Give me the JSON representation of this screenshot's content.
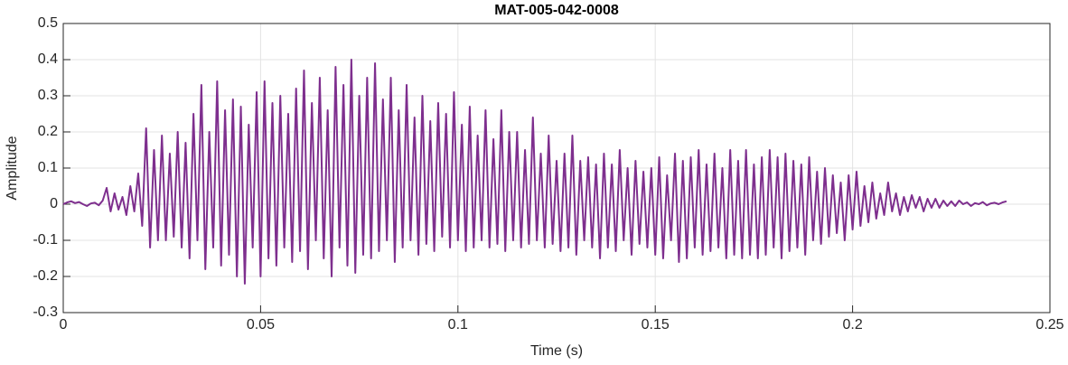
{
  "chart_data": {
    "type": "line",
    "title": "MAT-005-042-0008",
    "xlabel": "Time (s)",
    "ylabel": "Amplitude",
    "color": "#7e2f8e",
    "grid": true,
    "xlim": [
      0,
      0.25
    ],
    "xticks": [
      0,
      0.05,
      0.1,
      0.15,
      0.2,
      0.25
    ],
    "ylim": [
      -0.3,
      0.5
    ],
    "yticks": [
      -0.3,
      -0.2,
      -0.1,
      0,
      0.1,
      0.2,
      0.3,
      0.4,
      0.5
    ],
    "x": [
      0,
      0.001,
      0.002,
      0.003,
      0.004,
      0.005,
      0.006,
      0.007,
      0.008,
      0.009,
      0.01,
      0.011,
      0.012,
      0.013,
      0.014,
      0.015,
      0.016,
      0.017,
      0.018,
      0.019,
      0.02,
      0.021,
      0.022,
      0.023,
      0.024,
      0.025,
      0.026,
      0.027,
      0.028,
      0.029,
      0.03,
      0.031,
      0.032,
      0.033,
      0.034,
      0.035,
      0.036,
      0.037,
      0.038,
      0.039,
      0.04,
      0.041,
      0.042,
      0.043,
      0.044,
      0.045,
      0.046,
      0.047,
      0.048,
      0.049,
      0.05,
      0.051,
      0.052,
      0.053,
      0.054,
      0.055,
      0.056,
      0.057,
      0.058,
      0.059,
      0.06,
      0.061,
      0.062,
      0.063,
      0.064,
      0.065,
      0.066,
      0.067,
      0.068,
      0.069,
      0.07,
      0.071,
      0.072,
      0.073,
      0.074,
      0.075,
      0.076,
      0.077,
      0.078,
      0.079,
      0.08,
      0.081,
      0.082,
      0.083,
      0.084,
      0.085,
      0.086,
      0.087,
      0.088,
      0.089,
      0.09,
      0.091,
      0.092,
      0.093,
      0.094,
      0.095,
      0.096,
      0.097,
      0.098,
      0.099,
      0.1,
      0.101,
      0.102,
      0.103,
      0.104,
      0.105,
      0.106,
      0.107,
      0.108,
      0.109,
      0.11,
      0.111,
      0.112,
      0.113,
      0.114,
      0.115,
      0.116,
      0.117,
      0.118,
      0.119,
      0.12,
      0.121,
      0.122,
      0.123,
      0.124,
      0.125,
      0.126,
      0.127,
      0.128,
      0.129,
      0.13,
      0.131,
      0.132,
      0.133,
      0.134,
      0.135,
      0.136,
      0.137,
      0.138,
      0.139,
      0.14,
      0.141,
      0.142,
      0.143,
      0.144,
      0.145,
      0.146,
      0.147,
      0.148,
      0.149,
      0.15,
      0.151,
      0.152,
      0.153,
      0.154,
      0.155,
      0.156,
      0.157,
      0.158,
      0.159,
      0.16,
      0.161,
      0.162,
      0.163,
      0.164,
      0.165,
      0.166,
      0.167,
      0.168,
      0.169,
      0.17,
      0.171,
      0.172,
      0.173,
      0.174,
      0.175,
      0.176,
      0.177,
      0.178,
      0.179,
      0.18,
      0.181,
      0.182,
      0.183,
      0.184,
      0.185,
      0.186,
      0.187,
      0.188,
      0.189,
      0.19,
      0.191,
      0.192,
      0.193,
      0.194,
      0.195,
      0.196,
      0.197,
      0.198,
      0.199,
      0.2,
      0.201,
      0.202,
      0.203,
      0.204,
      0.205,
      0.206,
      0.207,
      0.208,
      0.209,
      0.21,
      0.211,
      0.212,
      0.213,
      0.214,
      0.215,
      0.216,
      0.217,
      0.218,
      0.219,
      0.22,
      0.221,
      0.222,
      0.223,
      0.224,
      0.225,
      0.226,
      0.227,
      0.228,
      0.229,
      0.23,
      0.231,
      0.232,
      0.233,
      0.234,
      0.235,
      0.236,
      0.237,
      0.238,
      0.239
    ],
    "values": [
      0,
      0.005,
      0.008,
      0.003,
      0.006,
      0,
      -0.005,
      0.002,
      0.004,
      -0.003,
      0.01,
      0.045,
      -0.02,
      0.03,
      -0.015,
      0.02,
      -0.03,
      0.05,
      -0.02,
      0.085,
      -0.06,
      0.21,
      -0.12,
      0.15,
      -0.1,
      0.19,
      -0.1,
      0.14,
      -0.09,
      0.2,
      -0.12,
      0.17,
      -0.15,
      0.25,
      -0.1,
      0.33,
      -0.18,
      0.2,
      -0.12,
      0.34,
      -0.17,
      0.26,
      -0.14,
      0.29,
      -0.2,
      0.27,
      -0.22,
      0.22,
      -0.12,
      0.31,
      -0.2,
      0.34,
      -0.15,
      0.28,
      -0.17,
      0.3,
      -0.12,
      0.25,
      -0.16,
      0.32,
      -0.13,
      0.37,
      -0.18,
      0.28,
      -0.1,
      0.35,
      -0.15,
      0.26,
      -0.2,
      0.38,
      -0.12,
      0.33,
      -0.17,
      0.4,
      -0.19,
      0.3,
      -0.14,
      0.35,
      -0.15,
      0.39,
      -0.13,
      0.29,
      -0.1,
      0.35,
      -0.16,
      0.26,
      -0.12,
      0.33,
      -0.1,
      0.24,
      -0.14,
      0.3,
      -0.11,
      0.23,
      -0.13,
      0.28,
      -0.09,
      0.25,
      -0.12,
      0.31,
      -0.1,
      0.22,
      -0.13,
      0.27,
      -0.12,
      0.19,
      -0.1,
      0.26,
      -0.12,
      0.18,
      -0.11,
      0.26,
      -0.13,
      0.2,
      -0.1,
      0.2,
      -0.12,
      0.15,
      -0.11,
      0.24,
      -0.1,
      0.14,
      -0.12,
      0.19,
      -0.11,
      0.12,
      -0.13,
      0.14,
      -0.12,
      0.19,
      -0.14,
      0.12,
      -0.1,
      0.13,
      -0.12,
      0.11,
      -0.15,
      0.14,
      -0.12,
      0.11,
      -0.13,
      0.15,
      -0.1,
      0.1,
      -0.14,
      0.12,
      -0.11,
      0.09,
      -0.12,
      0.1,
      -0.14,
      0.13,
      -0.15,
      0.08,
      -0.1,
      0.14,
      -0.16,
      0.12,
      -0.15,
      0.13,
      -0.12,
      0.15,
      -0.14,
      0.11,
      -0.13,
      0.14,
      -0.12,
      0.1,
      -0.15,
      0.15,
      -0.14,
      0.12,
      -0.15,
      0.15,
      -0.14,
      0.11,
      -0.15,
      0.13,
      -0.14,
      0.15,
      -0.12,
      0.13,
      -0.15,
      0.14,
      -0.13,
      0.12,
      -0.12,
      0.11,
      -0.14,
      0.13,
      -0.1,
      0.09,
      -0.11,
      0.1,
      -0.09,
      0.08,
      -0.08,
      0.06,
      -0.1,
      0.08,
      -0.07,
      0.09,
      -0.06,
      0.05,
      -0.05,
      0.06,
      -0.04,
      0.03,
      -0.03,
      0.06,
      -0.02,
      0.03,
      -0.03,
      0.02,
      -0.02,
      0.025,
      -0.01,
      0.02,
      -0.02,
      0.015,
      -0.01,
      0.015,
      -0.01,
      0.01,
      -0.005,
      0.008,
      -0.005,
      0.01,
      0,
      0.005,
      -0.005,
      0.003,
      0,
      0.006,
      -0.003,
      0.002,
      0.004,
      0,
      0.005,
      0.008
    ]
  }
}
